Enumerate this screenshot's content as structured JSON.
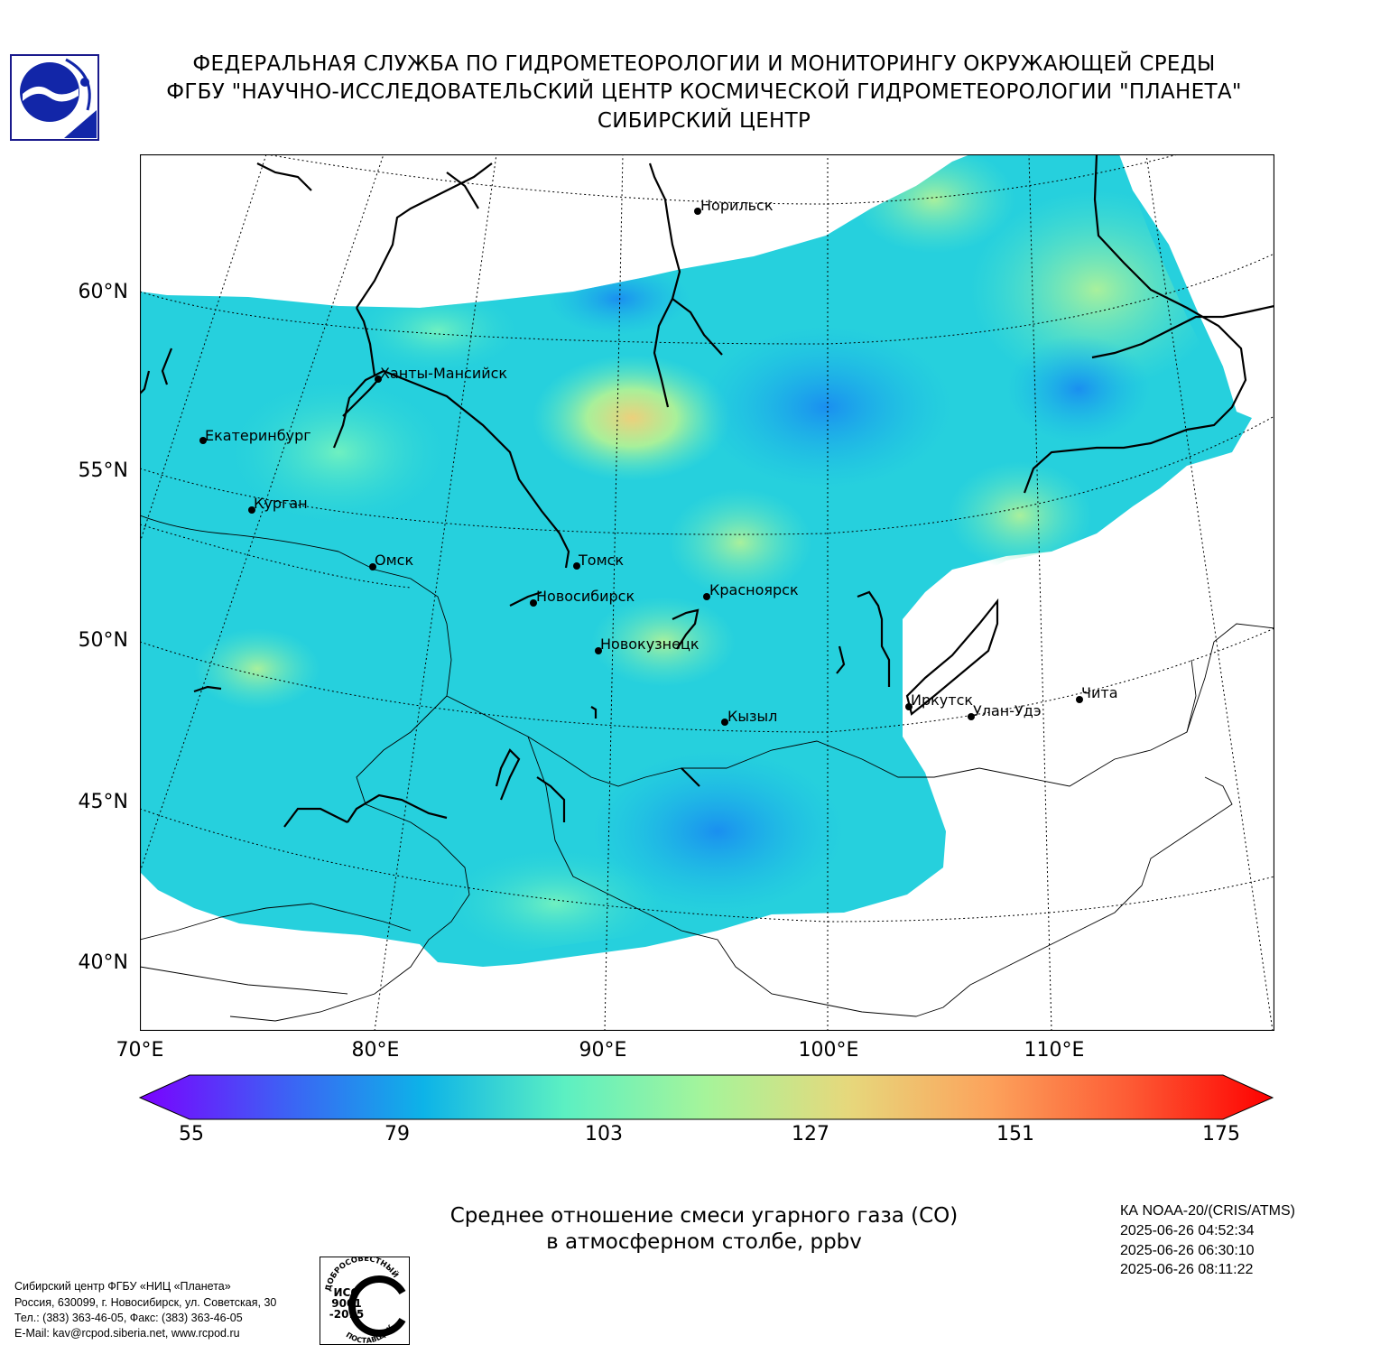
{
  "header": {
    "line1": "ФЕДЕРАЛЬНАЯ СЛУЖБА ПО ГИДРОМЕТЕОРОЛОГИИ И МОНИТОРИНГУ ОКРУЖАЮЩЕЙ СРЕДЫ",
    "line2": "ФГБУ \"НАУЧНО-ИССЛЕДОВАТЕЛЬСКИЙ ЦЕНТР КОСМИЧЕСКОЙ ГИДРОМЕТЕОРОЛОГИИ \"ПЛАНЕТА\"",
    "line3": "СИБИРСКИЙ ЦЕНТР"
  },
  "map": {
    "lat_labels": [
      "60°N",
      "55°N",
      "50°N",
      "45°N",
      "40°N"
    ],
    "lon_labels": [
      "70°E",
      "80°E",
      "90°E",
      "100°E",
      "110°E"
    ],
    "cities": [
      {
        "name": "Норильск"
      },
      {
        "name": "Ханты-Мансийск"
      },
      {
        "name": "Екатеринбург"
      },
      {
        "name": "Курган"
      },
      {
        "name": "Омск"
      },
      {
        "name": "Томск"
      },
      {
        "name": "Новосибирск"
      },
      {
        "name": "Красноярск"
      },
      {
        "name": "Новокузнецк"
      },
      {
        "name": "Иркутск"
      },
      {
        "name": "Улан-Удэ"
      },
      {
        "name": "Чита"
      },
      {
        "name": "Кызыл"
      }
    ]
  },
  "colorbar": {
    "ticks": [
      "55",
      "79",
      "103",
      "127",
      "151",
      "175"
    ],
    "min": 55,
    "max": 175,
    "colors": [
      "#7b00ff",
      "#3f5ef5",
      "#0db3e8",
      "#5cf0c2",
      "#a6f49a",
      "#e6d87c",
      "#fca35c",
      "#fd5a34",
      "#fe0000"
    ]
  },
  "caption": {
    "line1": "Среднее отношение смеси угарного газа (CO)",
    "line2": "в атмосферном столбе, ppbv"
  },
  "satellite": {
    "name": "КА NOAA-20/(CRIS/ATMS)",
    "pass1": "2025-06-26 04:52:34",
    "pass2": "2025-06-26 06:30:10",
    "pass3": "2025-06-26 08:11:22"
  },
  "footer": {
    "org": "Сибирский центр ФГБУ «НИЦ «Планета»",
    "address": "Россия, 630099, г. Новосибирск, ул. Советская, 30",
    "phone": "Тел.: (383) 363-46-05, Факс: (383) 363-46-05",
    "email": "E-Mail: kav@rcpod.siberia.net, www.rcpod.ru"
  },
  "iso_stamp": {
    "top": "ДОБРОСОВЕСТНЫЙ",
    "line1": "ИСО",
    "line2": "9001",
    "line3": "-2015",
    "bottom": "ПОСТАВЩИК"
  }
}
